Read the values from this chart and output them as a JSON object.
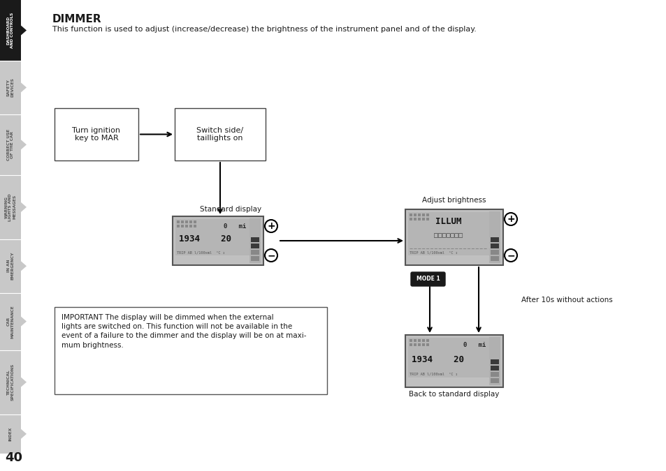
{
  "title": "DIMMER",
  "subtitle": "This function is used to adjust (increase/decrease) the brightness of the instrument panel and of the display.",
  "bg_color": "#ffffff",
  "sidebar_sections": [
    {
      "label": "DASHBOARD\nAND CONTROLS",
      "color": "#1a1a1a",
      "text_color": "#ffffff"
    },
    {
      "label": "SAFETY\nDEVICES",
      "color": "#c8c8c8",
      "text_color": "#555555"
    },
    {
      "label": "CORRECT USE\nOF THE CAR",
      "color": "#c8c8c8",
      "text_color": "#555555"
    },
    {
      "label": "WARNING\nLIGHTS AND\nMESSAGES",
      "color": "#c8c8c8",
      "text_color": "#555555"
    },
    {
      "label": "IN AN\nEMERGENCY",
      "color": "#c8c8c8",
      "text_color": "#555555"
    },
    {
      "label": "CAR\nMAINTENANCE",
      "color": "#c8c8c8",
      "text_color": "#555555"
    },
    {
      "label": "TECHNICAL\nSPECIFICATIONS",
      "color": "#c8c8c8",
      "text_color": "#555555"
    },
    {
      "label": "INDEX",
      "color": "#c8c8c8",
      "text_color": "#555555"
    }
  ],
  "sidebar_heights": [
    85,
    75,
    85,
    90,
    75,
    80,
    90,
    55
  ],
  "page_number": "40",
  "box1_label": "Turn ignition\nkey to MAR",
  "box2_label": "Switch side/\ntaillights on",
  "standard_display_label": "Standard display",
  "adjust_brightness_label": "Adjust brightness",
  "after_10s_label": "After 10s without actions",
  "back_to_standard_label": "Back to standard display",
  "mode1_label": "MODE 1",
  "important_text": "IMPORTANT The display will be dimmed when the external\nlights are switched on. This function will not be available in the\nevent of a failure to the dimmer and the display will be on at maxi-\nmum brightness.",
  "display1_line1": "0   mi",
  "display1_line2": "1934    20",
  "display1_line3": "TRIP AB l/100xml  °C ↕",
  "display2_line1": "ILLUM",
  "display2_line2": "□□□□□□□",
  "display2_line3": "TRIP AB l/100xml  °C ↕",
  "display3_line1": "0   mi",
  "display3_line2": "1934    20",
  "display3_line3": "TRIP AB l/100xml  °C ↕"
}
